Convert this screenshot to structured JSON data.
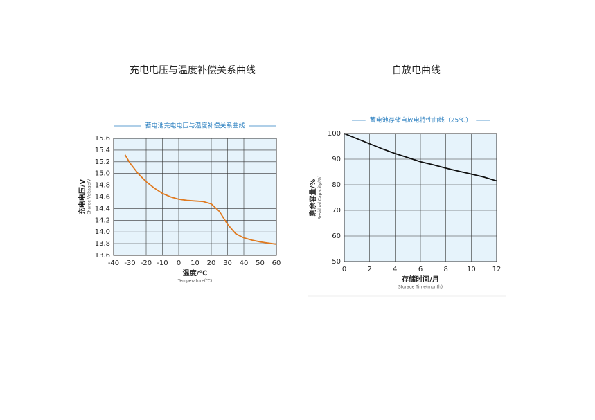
{
  "chart_data": [
    {
      "type": "line",
      "heading": "充电电压与温度补偿关系曲线",
      "title": "蓄电池充电电压与温度补偿关系曲线",
      "x_label": "温度/℃",
      "x_label_en": "Temperature(℃)",
      "y_label": "充电电压/V",
      "y_label_en": "Charge Voltage/V",
      "x": [
        -33,
        -30,
        -25,
        -20,
        -15,
        -10,
        -5,
        0,
        5,
        10,
        15,
        20,
        25,
        30,
        35,
        40,
        45,
        50,
        55,
        60
      ],
      "series": [
        {
          "name": "充电电压",
          "color": "#e07a20",
          "values": [
            15.32,
            15.18,
            15.0,
            14.86,
            14.75,
            14.66,
            14.6,
            14.56,
            14.54,
            14.53,
            14.52,
            14.48,
            14.35,
            14.13,
            13.97,
            13.9,
            13.86,
            13.83,
            13.81,
            13.79
          ]
        }
      ],
      "xlim": [
        -40,
        60
      ],
      "xticks": [
        -40,
        -30,
        -20,
        -10,
        0,
        10,
        20,
        30,
        40,
        50,
        60
      ],
      "ylim": [
        13.6,
        15.6
      ],
      "yticks": [
        13.6,
        13.8,
        {
          "value": 14,
          "label": "14.0"
        },
        14.2,
        14.4,
        14.6,
        14.8,
        {
          "value": 15,
          "label": "15.0"
        },
        15.2,
        15.4,
        15.6
      ],
      "grid": true
    },
    {
      "type": "line",
      "heading": "自放电曲线",
      "title": "蓄电池存储自放电特性曲线（25℃）",
      "x_label": "存储时间/月",
      "x_label_en": "Storage Time(month)",
      "y_label": "剩余容量/%",
      "y_label_en": "Residual Capacity(%)",
      "x": [
        0,
        1,
        2,
        3,
        4,
        5,
        6,
        7,
        8,
        9,
        10,
        11,
        12
      ],
      "series": [
        {
          "name": "剩余容量",
          "color": "#111111",
          "values": [
            100,
            98,
            96,
            94,
            92.2,
            90.6,
            89,
            87.8,
            86.5,
            85.3,
            84.2,
            83,
            81.5
          ]
        }
      ],
      "xlim": [
        0,
        12
      ],
      "xticks": [
        0,
        2,
        4,
        6,
        8,
        10,
        12
      ],
      "ylim": [
        50,
        100
      ],
      "yticks": [
        50,
        60,
        70,
        80,
        90,
        100
      ],
      "grid": true
    }
  ]
}
